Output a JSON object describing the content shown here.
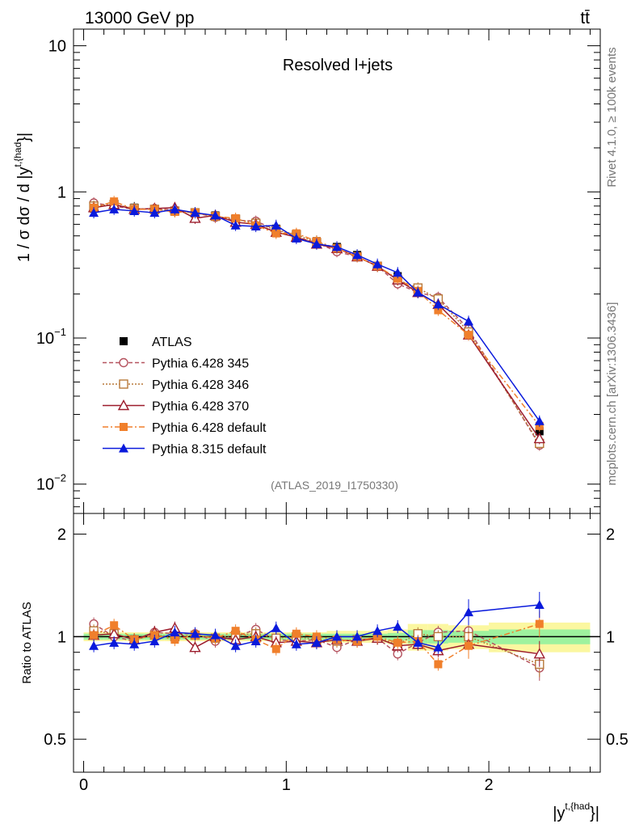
{
  "header": {
    "energy_label": "13000 GeV pp",
    "process_label": "tt̄",
    "plot_title": "Resolved l+jets",
    "analysis_id": "(ATLAS_2019_I1750330)",
    "rivet_label": "Rivet 4.1.0, ≥ 100k events",
    "mcplots_label": "mcplots.cern.ch [arXiv:1306.3436]"
  },
  "axes": {
    "top_ylabel": "1 / σ dσ / d |y",
    "top_ylabel_sup": "t,{had",
    "top_ylabel_end": "}|",
    "ratio_ylabel": "Ratio to ATLAS",
    "xlabel": "|y",
    "xlabel_sup": "t,{had",
    "xlabel_end": "}|",
    "top_yticks": [
      {
        "value": 10,
        "label": "10"
      },
      {
        "value": 1,
        "label": "1"
      },
      {
        "value": 0.1,
        "label": "10",
        "sup": "−1"
      },
      {
        "value": 0.01,
        "label": "10",
        "sup": "−2"
      }
    ],
    "ratio_yticks": [
      {
        "value": 2,
        "label": "2"
      },
      {
        "value": 1,
        "label": "1"
      },
      {
        "value": 0.5,
        "label": "0.5"
      }
    ],
    "xticks": [
      {
        "value": 0,
        "label": "0"
      },
      {
        "value": 1,
        "label": "1"
      },
      {
        "value": 2,
        "label": "2"
      }
    ]
  },
  "chart_data": [
    {
      "type": "line",
      "panel": "main",
      "title": "Resolved l+jets",
      "xlabel": "|y^{t,{had}}|",
      "ylabel": "1 / σ dσ / d |y^{t,{had}}|",
      "yscale": "log",
      "xlim": [
        -0.05,
        2.55
      ],
      "ylim": [
        0.0063,
        13
      ],
      "x": [
        0.05,
        0.15,
        0.25,
        0.35,
        0.45,
        0.55,
        0.65,
        0.75,
        0.85,
        0.95,
        1.05,
        1.15,
        1.25,
        1.35,
        1.45,
        1.55,
        1.65,
        1.75,
        1.9,
        2.25
      ],
      "series": [
        {
          "name": "ATLAS",
          "style": "marker",
          "marker": "square-filled",
          "color": "#000000",
          "values": [
            0.77,
            0.8,
            0.78,
            0.75,
            0.74,
            0.71,
            0.69,
            0.64,
            0.6,
            0.56,
            0.51,
            0.46,
            0.42,
            0.37,
            0.31,
            0.265,
            0.215,
            0.185,
            0.11,
            0.023
          ]
        },
        {
          "name": "Pythia 6.428 345",
          "style": "dashed",
          "marker": "circle-open",
          "color": "#b5535f",
          "values": [
            0.84,
            0.8,
            0.76,
            0.77,
            0.75,
            0.72,
            0.67,
            0.64,
            0.63,
            0.55,
            0.49,
            0.45,
            0.39,
            0.36,
            0.31,
            0.235,
            0.205,
            0.19,
            0.115,
            0.0185
          ]
        },
        {
          "name": "Pythia 6.428 346",
          "style": "dotted",
          "marker": "square-open",
          "color": "#b8793a",
          "values": [
            0.8,
            0.82,
            0.77,
            0.76,
            0.74,
            0.72,
            0.68,
            0.65,
            0.61,
            0.55,
            0.51,
            0.45,
            0.41,
            0.36,
            0.31,
            0.25,
            0.22,
            0.185,
            0.11,
            0.019
          ]
        },
        {
          "name": "Pythia 6.428 370",
          "style": "solid",
          "marker": "triangle-open",
          "color": "#9c1c2c",
          "values": [
            0.78,
            0.82,
            0.76,
            0.77,
            0.78,
            0.66,
            0.69,
            0.62,
            0.6,
            0.53,
            0.49,
            0.44,
            0.41,
            0.36,
            0.31,
            0.25,
            0.205,
            0.17,
            0.105,
            0.0205
          ]
        },
        {
          "name": "Pythia 6.428 default",
          "style": "dashdot",
          "marker": "square-filled",
          "color": "#f07f2b",
          "values": [
            0.78,
            0.86,
            0.76,
            0.76,
            0.73,
            0.72,
            0.68,
            0.66,
            0.59,
            0.52,
            0.52,
            0.46,
            0.41,
            0.36,
            0.31,
            0.255,
            0.21,
            0.155,
            0.105,
            0.025
          ]
        },
        {
          "name": "Pythia 8.315 default",
          "style": "solid",
          "marker": "triangle-filled",
          "color": "#0a1adc",
          "values": [
            0.72,
            0.76,
            0.74,
            0.72,
            0.76,
            0.72,
            0.69,
            0.59,
            0.58,
            0.59,
            0.48,
            0.44,
            0.42,
            0.37,
            0.32,
            0.28,
            0.205,
            0.17,
            0.13,
            0.027
          ]
        }
      ]
    },
    {
      "type": "line",
      "panel": "ratio",
      "ylabel": "Ratio to ATLAS",
      "xlim": [
        -0.05,
        2.55
      ],
      "ylim": [
        0.4,
        2.3
      ],
      "x_edges": [
        0.0,
        0.1,
        0.2,
        0.3,
        0.4,
        0.5,
        0.6,
        0.7,
        0.8,
        0.9,
        1.0,
        1.1,
        1.2,
        1.3,
        1.4,
        1.5,
        1.6,
        1.7,
        1.8,
        2.0,
        2.5
      ],
      "band_inner_halfwidth": [
        0.02,
        0.02,
        0.02,
        0.02,
        0.02,
        0.02,
        0.02,
        0.02,
        0.02,
        0.02,
        0.02,
        0.02,
        0.02,
        0.02,
        0.02,
        0.025,
        0.045,
        0.045,
        0.04,
        0.05
      ],
      "band_outer_halfwidth": [
        0.03,
        0.03,
        0.03,
        0.03,
        0.03,
        0.03,
        0.03,
        0.03,
        0.03,
        0.03,
        0.03,
        0.03,
        0.04,
        0.04,
        0.04,
        0.05,
        0.09,
        0.09,
        0.08,
        0.1
      ],
      "x": [
        0.05,
        0.15,
        0.25,
        0.35,
        0.45,
        0.55,
        0.65,
        0.75,
        0.85,
        0.95,
        1.05,
        1.15,
        1.25,
        1.35,
        1.45,
        1.55,
        1.65,
        1.75,
        1.9,
        2.25
      ],
      "series": [
        {
          "name": "Pythia 6.428 345",
          "values": [
            1.09,
            1.0,
            0.97,
            1.03,
            1.02,
            1.02,
            0.97,
            1.0,
            1.05,
            0.98,
            0.97,
            0.98,
            0.93,
            0.98,
            0.99,
            0.89,
            0.96,
            1.03,
            1.04,
            0.81
          ]
        },
        {
          "name": "Pythia 6.428 346",
          "values": [
            1.04,
            1.02,
            0.98,
            1.01,
            1.0,
            1.01,
            0.99,
            1.01,
            1.02,
            0.99,
            1.0,
            0.98,
            0.97,
            0.98,
            0.99,
            0.95,
            1.02,
            1.0,
            1.0,
            0.83
          ]
        },
        {
          "name": "Pythia 6.428 370",
          "values": [
            1.01,
            1.02,
            0.98,
            1.03,
            1.06,
            0.93,
            1.0,
            0.98,
            1.0,
            0.96,
            0.97,
            0.96,
            0.98,
            0.97,
            0.99,
            0.94,
            0.95,
            0.91,
            0.95,
            0.89
          ]
        },
        {
          "name": "Pythia 6.428 default",
          "values": [
            1.01,
            1.08,
            0.98,
            1.01,
            0.98,
            1.01,
            0.99,
            1.04,
            0.98,
            0.92,
            1.02,
            1.0,
            0.98,
            0.97,
            1.0,
            0.96,
            0.97,
            0.83,
            0.94,
            1.09
          ]
        },
        {
          "name": "Pythia 8.315 default",
          "values": [
            0.94,
            0.96,
            0.95,
            0.97,
            1.03,
            1.02,
            1.01,
            0.94,
            0.97,
            1.06,
            0.95,
            0.96,
            1.0,
            1.0,
            1.04,
            1.07,
            0.96,
            0.93,
            1.18,
            1.24
          ]
        }
      ]
    }
  ]
}
